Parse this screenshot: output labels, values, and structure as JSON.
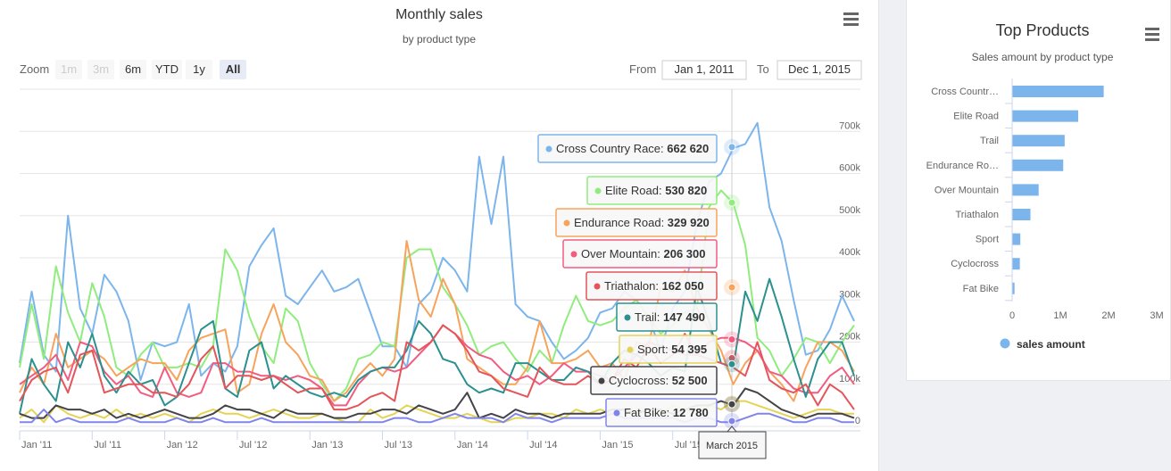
{
  "main_chart": {
    "title": "Monthly sales",
    "subtitle": "by product type",
    "zoom": {
      "label": "Zoom",
      "buttons": [
        "1m",
        "3m",
        "6m",
        "YTD",
        "1y",
        "All"
      ],
      "disabled": [
        "1m",
        "3m"
      ],
      "active": "All"
    },
    "range": {
      "from_label": "From",
      "from_value": "Jan 1, 2011",
      "to_label": "To",
      "to_value": "Dec 1, 2015"
    },
    "menu_icon": "hamburger-menu-icon",
    "crosshair_label": "March 2015",
    "tooltips": [
      {
        "name": "Cross Country Race",
        "value": "662 620",
        "color": "#7cb5ec"
      },
      {
        "name": "Elite Road",
        "value": "530 820",
        "color": "#90ed7d"
      },
      {
        "name": "Endurance Road",
        "value": "329 920",
        "color": "#f7a35c"
      },
      {
        "name": "Over Mountain",
        "value": "206 300",
        "color": "#f15c80"
      },
      {
        "name": "Triathalon",
        "value": "162 050",
        "color": "#e4555a"
      },
      {
        "name": "Trail",
        "value": "147 490",
        "color": "#2b908f"
      },
      {
        "name": "Sport",
        "value": "54 395",
        "color": "#e4d354"
      },
      {
        "name": "Cyclocross",
        "value": "52 500",
        "color": "#434348"
      },
      {
        "name": "Fat Bike",
        "value": "12 780",
        "color": "#8085e9"
      }
    ]
  },
  "chart_data": [
    {
      "type": "line",
      "title": "Monthly sales",
      "subtitle": "by product type",
      "x_start": "Jan 2011",
      "x_tick_labels": [
        "Jan '11",
        "Jul '11",
        "Jan '12",
        "Jul '12",
        "Jan '13",
        "Jul '13",
        "Jan '14",
        "Jul '14",
        "Jan '15",
        "Jul '15"
      ],
      "y_tick_labels": [
        "0",
        "100k",
        "200k",
        "300k",
        "400k",
        "500k",
        "600k",
        "700k"
      ],
      "ylim": [
        0,
        800000
      ],
      "series": [
        {
          "name": "Cross Country Race",
          "color": "#7cb5ec",
          "values": [
            150000,
            320000,
            170000,
            130000,
            500000,
            280000,
            220000,
            360000,
            320000,
            250000,
            110000,
            200000,
            190000,
            200000,
            290000,
            120000,
            150000,
            130000,
            190000,
            380000,
            430000,
            470000,
            310000,
            290000,
            330000,
            370000,
            320000,
            330000,
            350000,
            270000,
            190000,
            190000,
            140000,
            290000,
            320000,
            400000,
            370000,
            320000,
            640000,
            480000,
            640000,
            290000,
            260000,
            250000,
            200000,
            160000,
            180000,
            210000,
            270000,
            280000,
            320000,
            300000,
            260000,
            180000,
            280000,
            320000,
            480000,
            580000,
            600000,
            660000,
            670000,
            720000,
            520000,
            440000,
            300000,
            170000,
            180000,
            230000,
            310000,
            250000
          ]
        },
        {
          "name": "Elite Road",
          "color": "#90ed7d",
          "values": [
            140000,
            290000,
            160000,
            380000,
            270000,
            200000,
            340000,
            260000,
            140000,
            120000,
            170000,
            200000,
            140000,
            140000,
            150000,
            140000,
            190000,
            420000,
            370000,
            260000,
            190000,
            150000,
            280000,
            250000,
            150000,
            100000,
            60000,
            90000,
            160000,
            170000,
            200000,
            190000,
            400000,
            420000,
            420000,
            330000,
            290000,
            240000,
            170000,
            190000,
            200000,
            160000,
            130000,
            180000,
            150000,
            240000,
            310000,
            250000,
            240000,
            250000,
            280000,
            300000,
            260000,
            220000,
            240000,
            270000,
            280000,
            520000,
            560000,
            530000,
            430000,
            210000,
            180000,
            120000,
            160000,
            210000,
            200000,
            150000,
            200000,
            240000
          ]
        },
        {
          "name": "Endurance Road",
          "color": "#f7a35c",
          "values": [
            80000,
            140000,
            100000,
            220000,
            140000,
            160000,
            180000,
            160000,
            120000,
            140000,
            160000,
            150000,
            150000,
            110000,
            180000,
            210000,
            220000,
            230000,
            80000,
            100000,
            220000,
            290000,
            200000,
            170000,
            120000,
            110000,
            60000,
            80000,
            120000,
            150000,
            120000,
            160000,
            440000,
            300000,
            260000,
            350000,
            290000,
            160000,
            140000,
            120000,
            100000,
            100000,
            140000,
            250000,
            150000,
            150000,
            160000,
            180000,
            140000,
            150000,
            110000,
            200000,
            190000,
            330000,
            320000,
            370000,
            280000,
            230000,
            180000,
            100000,
            150000,
            180000,
            130000,
            100000,
            60000,
            140000,
            200000,
            200000,
            180000,
            130000
          ]
        },
        {
          "name": "Over Mountain",
          "color": "#f15c80",
          "values": [
            100000,
            120000,
            140000,
            170000,
            110000,
            200000,
            190000,
            130000,
            100000,
            120000,
            80000,
            70000,
            140000,
            80000,
            70000,
            80000,
            150000,
            150000,
            130000,
            130000,
            120000,
            120000,
            110000,
            120000,
            110000,
            90000,
            50000,
            50000,
            100000,
            130000,
            140000,
            130000,
            140000,
            170000,
            200000,
            240000,
            220000,
            190000,
            170000,
            160000,
            130000,
            110000,
            120000,
            100000,
            120000,
            150000,
            130000,
            130000,
            120000,
            110000,
            140000,
            170000,
            200000,
            190000,
            180000,
            170000,
            170000,
            200000,
            210000,
            210000,
            200000,
            180000,
            130000,
            120000,
            90000,
            80000,
            80000,
            120000,
            140000,
            100000
          ]
        },
        {
          "name": "Triathalon",
          "color": "#e4555a",
          "values": [
            60000,
            110000,
            130000,
            140000,
            80000,
            170000,
            180000,
            80000,
            90000,
            100000,
            100000,
            80000,
            80000,
            70000,
            100000,
            160000,
            190000,
            90000,
            120000,
            120000,
            110000,
            120000,
            100000,
            80000,
            90000,
            90000,
            40000,
            40000,
            50000,
            70000,
            80000,
            60000,
            200000,
            180000,
            200000,
            240000,
            220000,
            180000,
            130000,
            120000,
            90000,
            80000,
            70000,
            140000,
            110000,
            100000,
            100000,
            120000,
            100000,
            110000,
            160000,
            140000,
            190000,
            150000,
            170000,
            220000,
            170000,
            160000,
            150000,
            140000,
            120000,
            200000,
            110000,
            90000,
            80000,
            100000,
            50000,
            100000,
            80000,
            40000
          ]
        },
        {
          "name": "Trail",
          "color": "#2b908f",
          "values": [
            30000,
            160000,
            100000,
            60000,
            200000,
            140000,
            220000,
            120000,
            80000,
            130000,
            100000,
            110000,
            50000,
            70000,
            150000,
            230000,
            250000,
            90000,
            70000,
            180000,
            200000,
            90000,
            120000,
            100000,
            80000,
            70000,
            80000,
            70000,
            110000,
            130000,
            140000,
            140000,
            180000,
            250000,
            220000,
            160000,
            150000,
            100000,
            80000,
            90000,
            80000,
            150000,
            150000,
            130000,
            110000,
            110000,
            140000,
            130000,
            100000,
            150000,
            180000,
            170000,
            150000,
            120000,
            140000,
            130000,
            330000,
            250000,
            150000,
            140000,
            320000,
            250000,
            350000,
            260000,
            160000,
            70000,
            160000,
            200000,
            200000,
            120000
          ]
        },
        {
          "name": "Sport",
          "color": "#e4d354",
          "values": [
            20000,
            40000,
            10000,
            50000,
            30000,
            20000,
            30000,
            20000,
            40000,
            20000,
            30000,
            20000,
            30000,
            20000,
            10000,
            30000,
            40000,
            30000,
            30000,
            20000,
            30000,
            40000,
            30000,
            20000,
            20000,
            30000,
            20000,
            10000,
            10000,
            40000,
            20000,
            30000,
            50000,
            40000,
            30000,
            20000,
            20000,
            30000,
            20000,
            10000,
            10000,
            20000,
            20000,
            30000,
            30000,
            20000,
            40000,
            30000,
            40000,
            30000,
            40000,
            40000,
            30000,
            30000,
            50000,
            40000,
            30000,
            50000,
            40000,
            60000,
            60000,
            50000,
            40000,
            30000,
            20000,
            30000,
            40000,
            40000,
            30000,
            30000
          ]
        },
        {
          "name": "Cyclocross",
          "color": "#434348",
          "values": [
            30000,
            20000,
            20000,
            50000,
            40000,
            40000,
            30000,
            40000,
            20000,
            30000,
            20000,
            30000,
            40000,
            30000,
            20000,
            20000,
            30000,
            50000,
            40000,
            40000,
            30000,
            20000,
            40000,
            30000,
            30000,
            30000,
            20000,
            20000,
            30000,
            30000,
            40000,
            40000,
            30000,
            50000,
            40000,
            30000,
            40000,
            80000,
            20000,
            30000,
            20000,
            40000,
            30000,
            30000,
            20000,
            30000,
            30000,
            30000,
            30000,
            40000,
            40000,
            30000,
            40000,
            40000,
            30000,
            40000,
            50000,
            50000,
            60000,
            50000,
            90000,
            80000,
            60000,
            40000,
            30000,
            20000,
            30000,
            30000,
            30000,
            20000
          ]
        },
        {
          "name": "Fat Bike",
          "color": "#8085e9",
          "values": [
            10000,
            10000,
            40000,
            10000,
            20000,
            10000,
            10000,
            10000,
            10000,
            20000,
            10000,
            10000,
            10000,
            20000,
            10000,
            10000,
            20000,
            10000,
            10000,
            10000,
            20000,
            10000,
            10000,
            10000,
            10000,
            10000,
            10000,
            10000,
            10000,
            10000,
            10000,
            20000,
            20000,
            10000,
            10000,
            20000,
            30000,
            20000,
            20000,
            20000,
            10000,
            30000,
            20000,
            20000,
            10000,
            20000,
            20000,
            20000,
            20000,
            30000,
            20000,
            20000,
            20000,
            20000,
            20000,
            10000,
            20000,
            20000,
            10000,
            10000,
            20000,
            30000,
            30000,
            20000,
            10000,
            10000,
            20000,
            20000,
            10000,
            10000
          ]
        }
      ]
    },
    {
      "type": "bar",
      "orientation": "horizontal",
      "title": "Top Products",
      "subtitle": "Sales amount by product type",
      "categories": [
        "Cross Countr…",
        "Elite Road",
        "Trail",
        "Endurance Ro…",
        "Over Mountain",
        "Triathalon",
        "Sport",
        "Cyclocross",
        "Fat Bike"
      ],
      "series": [
        {
          "name": "sales amount",
          "color": "#7cb5ec",
          "values": [
            1900000,
            1370000,
            1090000,
            1060000,
            550000,
            380000,
            170000,
            160000,
            50000
          ]
        }
      ],
      "x_tick_labels": [
        "0",
        "1M",
        "2M",
        "3M"
      ],
      "xlim": [
        0,
        3000000
      ],
      "legend": "bottom-center"
    }
  ],
  "side_chart": {
    "title": "Top Products",
    "subtitle": "Sales amount by product type",
    "legend_label": "sales amount",
    "menu_icon": "hamburger-menu-icon"
  }
}
